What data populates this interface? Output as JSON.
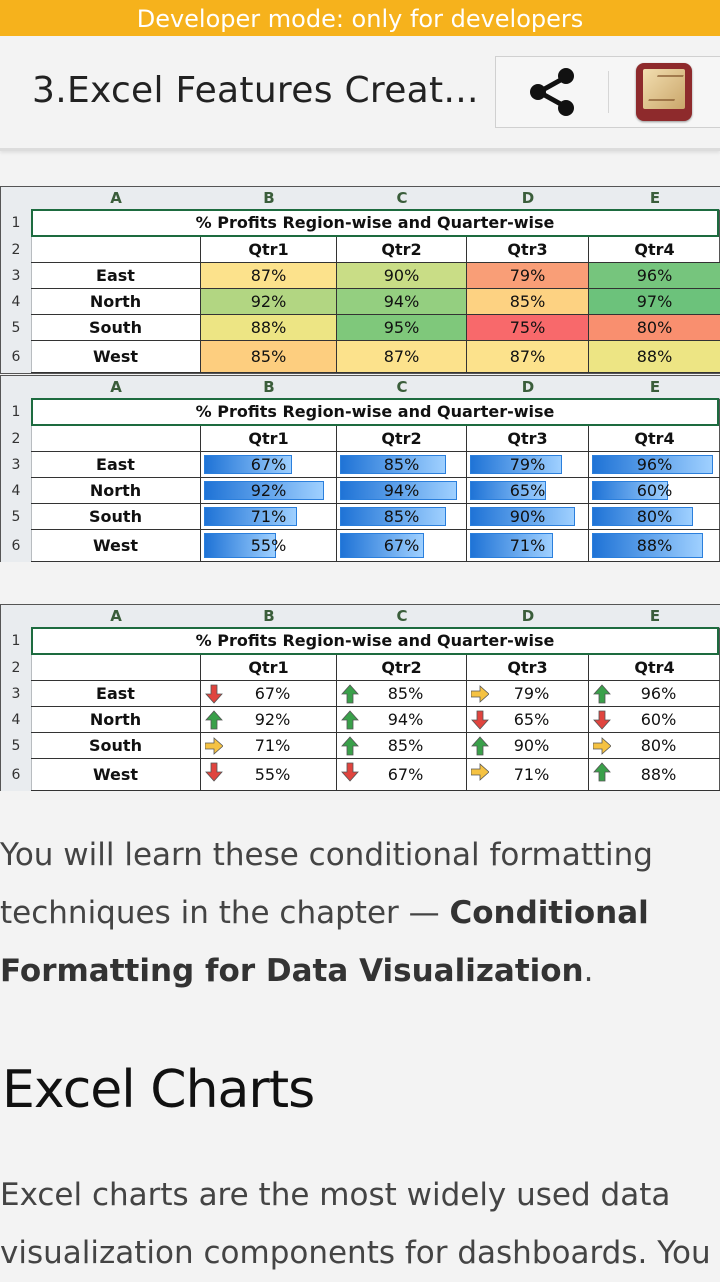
{
  "devbar": {
    "text": "Developer mode: only for developers"
  },
  "appbar": {
    "title": "3.Excel Features Creat...",
    "share_icon": "share-icon",
    "book_icon": "book-icon"
  },
  "sheet": {
    "columns": [
      "A",
      "B",
      "C",
      "D",
      "E"
    ],
    "row_numbers": [
      "1",
      "2",
      "3",
      "4",
      "5",
      "6"
    ],
    "title": "% Profits Region-wise and Quarter-wise",
    "quarters": [
      "Qtr1",
      "Qtr2",
      "Qtr3",
      "Qtr4"
    ],
    "regions": [
      "East",
      "North",
      "South",
      "West"
    ]
  },
  "table1": {
    "values": [
      [
        "87%",
        "90%",
        "79%",
        "96%"
      ],
      [
        "92%",
        "94%",
        "85%",
        "97%"
      ],
      [
        "88%",
        "95%",
        "75%",
        "80%"
      ],
      [
        "85%",
        "87%",
        "87%",
        "88%"
      ]
    ],
    "colors": [
      [
        "#fce28c",
        "#c9dd86",
        "#f99e77",
        "#76c57d"
      ],
      [
        "#b2d682",
        "#94cf80",
        "#fdd282",
        "#6cc27b"
      ],
      [
        "#ede584",
        "#7fc87b",
        "#f8696b",
        "#f98f6f"
      ],
      [
        "#fdce7f",
        "#fce28c",
        "#fce28c",
        "#ede584"
      ]
    ]
  },
  "table2": {
    "values": [
      [
        "67%",
        "85%",
        "79%",
        "96%"
      ],
      [
        "92%",
        "94%",
        "65%",
        "60%"
      ],
      [
        "71%",
        "85%",
        "90%",
        "80%"
      ],
      [
        "55%",
        "67%",
        "71%",
        "88%"
      ]
    ],
    "fill": [
      [
        0.67,
        0.85,
        0.79,
        0.96
      ],
      [
        0.92,
        0.94,
        0.65,
        0.6
      ],
      [
        0.71,
        0.85,
        0.9,
        0.8
      ],
      [
        0.55,
        0.67,
        0.71,
        0.88
      ]
    ]
  },
  "table3": {
    "values": [
      [
        "67%",
        "85%",
        "79%",
        "96%"
      ],
      [
        "92%",
        "94%",
        "65%",
        "60%"
      ],
      [
        "71%",
        "85%",
        "90%",
        "80%"
      ],
      [
        "55%",
        "67%",
        "71%",
        "88%"
      ]
    ],
    "arrows": [
      [
        "down",
        "up",
        "right",
        "up"
      ],
      [
        "up",
        "up",
        "down",
        "down"
      ],
      [
        "right",
        "up",
        "up",
        "right"
      ],
      [
        "down",
        "down",
        "right",
        "up"
      ]
    ]
  },
  "paragraph1": {
    "text": "You will learn these conditional formatting techniques in the chapter — ",
    "bold": "Conditional Formatting for Data Visualization",
    "end": "."
  },
  "heading": "Excel Charts",
  "paragraph2": {
    "text": "Excel charts are the most widely used data visualization components for dashboards. You"
  }
}
